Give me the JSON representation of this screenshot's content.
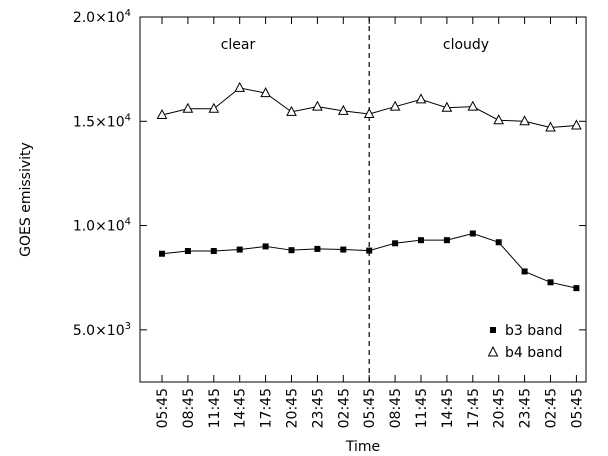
{
  "chart_data": {
    "type": "line",
    "xlabel": "Time",
    "ylabel": "GOES emissivity",
    "categories": [
      "05:45",
      "08:45",
      "11:45",
      "14:45",
      "17:45",
      "20:45",
      "23:45",
      "02:45",
      "05:45",
      "08:45",
      "11:45",
      "14:45",
      "17:45",
      "20:45",
      "23:45",
      "02:45",
      "05:45"
    ],
    "ylim": [
      2500,
      20000
    ],
    "yticks": [
      {
        "value": 5000,
        "mantissa": "5.0",
        "exponent": "3"
      },
      {
        "value": 10000,
        "mantissa": "1.0",
        "exponent": "4"
      },
      {
        "value": 15000,
        "mantissa": "1.5",
        "exponent": "4"
      },
      {
        "value": 20000,
        "mantissa": "2.0",
        "exponent": "4"
      }
    ],
    "series": [
      {
        "name": "b3 band",
        "marker": "square",
        "values": [
          8650,
          8780,
          8780,
          8850,
          9000,
          8820,
          8880,
          8850,
          8800,
          9150,
          9300,
          9300,
          9620,
          9200,
          7800,
          7280,
          7000
        ]
      },
      {
        "name": "b4 band",
        "marker": "triangle",
        "values": [
          15300,
          15600,
          15600,
          16600,
          16350,
          15450,
          15700,
          15500,
          15350,
          15700,
          16050,
          15650,
          15700,
          15050,
          15000,
          14700,
          14800
        ]
      }
    ],
    "divider_index": 8,
    "annotations": [
      "clear",
      "cloudy"
    ],
    "legend_position": "bottom-right",
    "grid": false
  }
}
